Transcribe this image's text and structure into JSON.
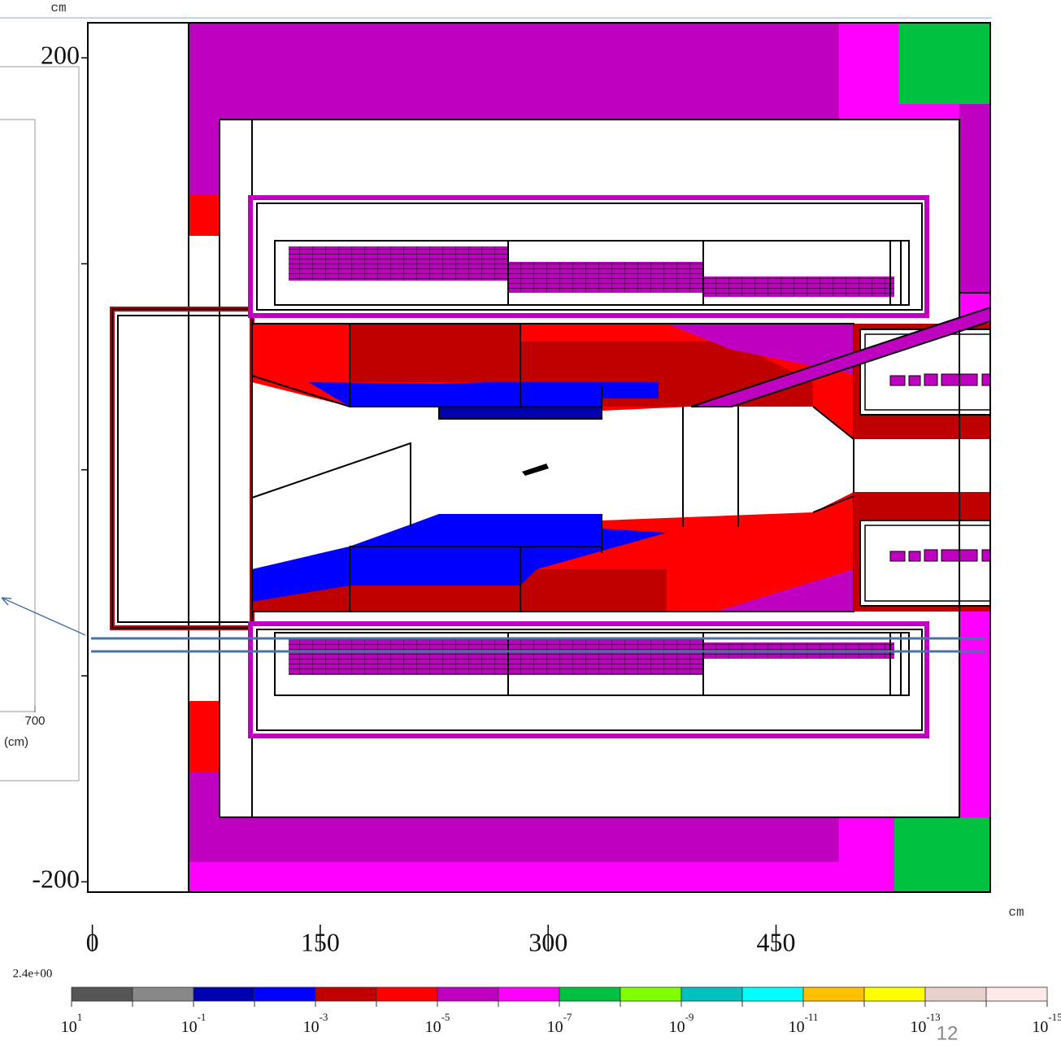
{
  "chart_data": {
    "type": "heatmap",
    "y_unit": "cm",
    "x_unit": "cm",
    "xlim": [
      -3,
      591
    ],
    "ylim": [
      -205,
      217
    ],
    "xticks": [
      0,
      150,
      300,
      450
    ],
    "yticks": [
      200,
      -200
    ],
    "yminor_ticks": [
      100,
      0,
      -100
    ],
    "colorbar": {
      "scale": "log",
      "max_label": "2.4e+00",
      "base": "10",
      "edges": [
        1,
        0,
        -1,
        -2,
        -3,
        -4,
        -5,
        -6,
        -7,
        -8,
        -9,
        -10,
        -11,
        -12,
        -13,
        -14,
        -15
      ],
      "colors": [
        "#555555",
        "#888888",
        "#0000b0",
        "#0000ff",
        "#c00000",
        "#ff0000",
        "#c000c0",
        "#ff00ff",
        "#00c040",
        "#80ff00",
        "#00c0c0",
        "#00ffff",
        "#ffc000",
        "#ffff00",
        "#e8d0cc",
        "#ffe8e8"
      ],
      "ticks": [
        1,
        -1,
        -3,
        -5,
        -7,
        -9,
        -11,
        -13,
        -15
      ]
    }
  },
  "inset": {
    "xtick": "700",
    "xlabel": "(cm)"
  },
  "page_number": "12"
}
